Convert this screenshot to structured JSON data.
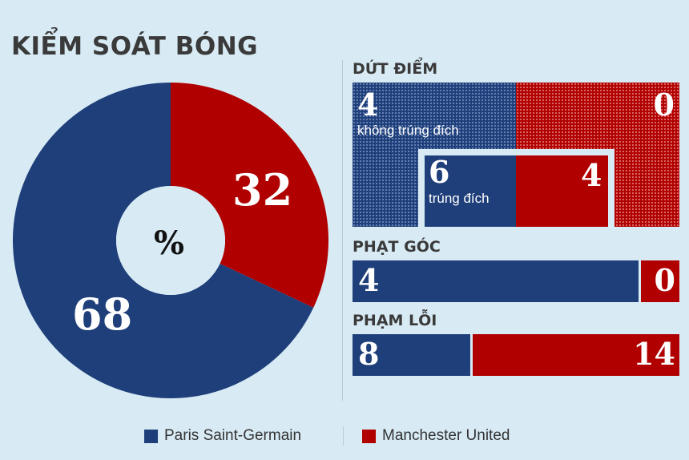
{
  "colors": {
    "psg": "#1f3f7a",
    "mu": "#b00000",
    "background": "#d8ebf5"
  },
  "legend": [
    {
      "name": "Paris Saint-Germain",
      "color": "#1f3f7a"
    },
    {
      "name": "Manchester United",
      "color": "#b00000"
    }
  ],
  "chart_data": [
    {
      "type": "pie",
      "title": "KIỂM SOÁT BÓNG",
      "center_label": "%",
      "donut": true,
      "slices": [
        {
          "team": "Manchester United",
          "value": 32,
          "color": "#b00000"
        },
        {
          "team": "Paris Saint-Germain",
          "value": 68,
          "color": "#1f3f7a"
        }
      ]
    },
    {
      "type": "bar",
      "title": "DỨT ĐIỂM",
      "off_target": {
        "label": "không trúng đích",
        "psg": 4,
        "mu": 0
      },
      "on_target": {
        "label": "trúng đích",
        "psg": 6,
        "mu": 4
      }
    },
    {
      "type": "bar",
      "title": "PHẠT GÓC",
      "psg": 4,
      "mu": 0
    },
    {
      "type": "bar",
      "title": "PHẠM LỖI",
      "psg": 8,
      "mu": 14
    }
  ]
}
